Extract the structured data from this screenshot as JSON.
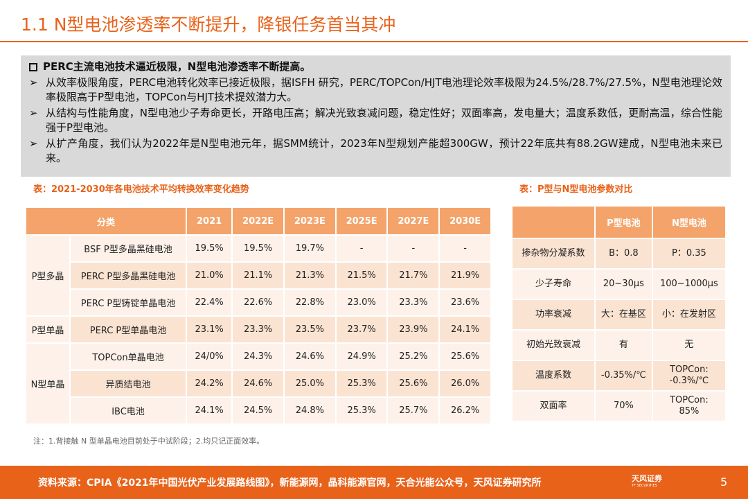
{
  "header": {
    "title": "1.1 N型电池渗透率不断提升，降银任务首当其冲"
  },
  "summary": {
    "heading": "PERC主流电池技术逼近极限，N型电池渗透率不断提高。",
    "bullets": [
      "从效率极限角度，PERC电池转化效率已接近极限，据ISFH 研究，PERC/TOPCon/HJT电池理论效率极限为24.5%/28.7%/27.5%，N型电池理论效率极限高于P型电池，TOPCon与HJT技术提效潜力大。",
      "从结构与性能角度，N型电池少子寿命更长，开路电压高；解决光致衰减问题，稳定性好；双面率高，发电量大；温度系数低，更耐高温，综合性能强于P型电池。",
      "从扩产角度，我们认为2022年是N型电池元年，据SMM统计，2023年N型规划产能超300GW，预计22年底共有88.2GW建成，N型电池未来已来。"
    ]
  },
  "left_table": {
    "caption": "表：2021-2030年各电池技术平均转换效率变化趋势",
    "columns": [
      "分类",
      "2021",
      "2022E",
      "2023E",
      "2025E",
      "2027E",
      "2030E"
    ],
    "groups": [
      {
        "label": "P型多晶",
        "rows": [
          {
            "name": "BSF P型多晶黑硅电池",
            "values": [
              "19.5%",
              "19.5%",
              "19.7%",
              "-",
              "-",
              "-"
            ]
          },
          {
            "name": "PERC P型多晶黑硅电池",
            "values": [
              "21.0%",
              "21.1%",
              "21.3%",
              "21.5%",
              "21.7%",
              "21.9%"
            ]
          },
          {
            "name": "PERC P型铸锭单晶电池",
            "values": [
              "22.4%",
              "22.6%",
              "22.8%",
              "23.0%",
              "23.3%",
              "23.6%"
            ]
          }
        ]
      },
      {
        "label": "P型单晶",
        "rows": [
          {
            "name": "PERC  P型单晶电池",
            "values": [
              "23.1%",
              "23.3%",
              "23.5%",
              "23.7%",
              "23.9%",
              "24.1%"
            ]
          }
        ]
      },
      {
        "label": "N型单晶",
        "rows": [
          {
            "name": "TOPCon单晶电池",
            "values": [
              "24/0%",
              "24.3%",
              "24.6%",
              "24.9%",
              "25.2%",
              "25.6%"
            ]
          },
          {
            "name": "异质结电池",
            "values": [
              "24.2%",
              "24.6%",
              "25.0%",
              "25.3%",
              "25.6%",
              "26.0%"
            ]
          },
          {
            "name": "IBC电池",
            "values": [
              "24.1%",
              "24.5%",
              "24.8%",
              "25.3%",
              "25.7%",
              "26.2%"
            ]
          }
        ]
      }
    ]
  },
  "right_table": {
    "caption": "表：P型与N型电池参数对比",
    "columns": [
      "",
      "P型电池",
      "N型电池"
    ],
    "rows": [
      [
        "掺杂物分凝系数",
        "B：0.8",
        "P：0.35"
      ],
      [
        "少子寿命",
        "20~30μs",
        "100~1000μs"
      ],
      [
        "功率衰减",
        "大：在基区",
        "小：在发射区"
      ],
      [
        "初始光致衰减",
        "有",
        "无"
      ],
      [
        "温度系数",
        "-0.35%/℃",
        "TOPCon:\n-0.3%/℃"
      ],
      [
        "双面率",
        "70%",
        "TOPCon:\n85%"
      ]
    ]
  },
  "note": "注：1.背接触 N 型单晶电池目前处于中试阶段；2.均只记正面效率。",
  "footer": {
    "source": "资料来源：CPIA《2021年中国光伏产业发展路线图》，新能源网，晶科能源官网，天合光能公众号，天风证券研究所",
    "logo": "天风证券",
    "logo_sub": "TF SECURITIES",
    "page": "5"
  }
}
